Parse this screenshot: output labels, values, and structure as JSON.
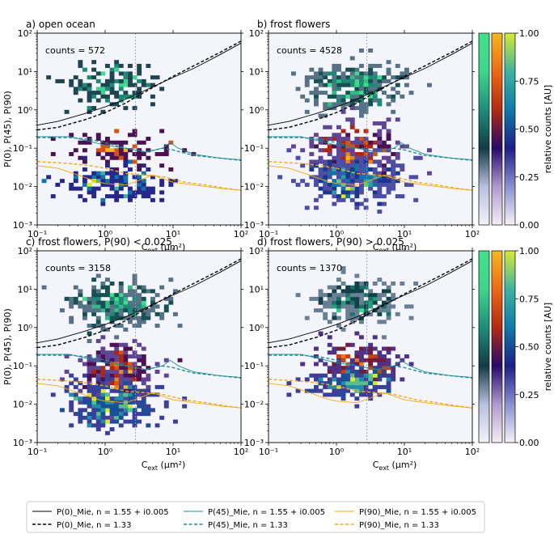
{
  "figure": {
    "colorbar_label": "relative counts [AU]",
    "colorbar_ticks": [
      "0.00",
      "0.25",
      "0.50",
      "0.75",
      "1.00"
    ],
    "colorbars": [
      {
        "name": "P(0)",
        "colors": [
          "#f4f3f8",
          "#b9bfe0",
          "#123b44",
          "#1f8d7a",
          "#3fd58c",
          "#43e08a"
        ]
      },
      {
        "name": "P(45)",
        "colors": [
          "#f6eef4",
          "#b09ad0",
          "#26096a",
          "#b22a12",
          "#eb6a15",
          "#f5b91f"
        ]
      },
      {
        "name": "P(90)",
        "colors": [
          "#f6f1f8",
          "#8c90cf",
          "#1d1f86",
          "#0f79a8",
          "#3fb3a0",
          "#d8ea32"
        ]
      }
    ]
  },
  "chart_data": {
    "type": "scatter",
    "x_axis": {
      "label": "C_ext (µm²)",
      "label_main": "C",
      "label_sub": "ext",
      "label_unit": " (µm²)",
      "scale": "log",
      "lim": [
        0.1,
        100
      ],
      "ticks": [
        0.1,
        1,
        10,
        100
      ],
      "tick_labels": [
        "10⁻¹",
        "10⁰",
        "10¹",
        "10²"
      ]
    },
    "y_axis": {
      "label": "P(0), P(45), P(90)",
      "scale": "log",
      "lim": [
        0.001,
        100
      ],
      "ticks": [
        0.001,
        0.01,
        0.1,
        1,
        10,
        100
      ],
      "tick_labels": [
        "10⁻³",
        "10⁻²",
        "10⁻¹",
        "10⁰",
        "10¹",
        "10²"
      ]
    },
    "vertical_reference_line_x": 2.8,
    "mie_curves": [
      {
        "name": "P(0) Mie n=1.55+i0.005",
        "style": "solid",
        "color": "#000000",
        "points": [
          [
            0.1,
            0.4
          ],
          [
            0.2,
            0.5
          ],
          [
            0.5,
            0.8
          ],
          [
            1,
            1.2
          ],
          [
            2,
            1.9
          ],
          [
            3,
            2.6
          ],
          [
            5,
            4
          ],
          [
            10,
            7
          ],
          [
            20,
            12
          ],
          [
            50,
            28
          ],
          [
            100,
            55
          ]
        ]
      },
      {
        "name": "P(0) Mie n=1.33",
        "style": "dashed",
        "color": "#000000",
        "points": [
          [
            0.1,
            0.3
          ],
          [
            0.2,
            0.35
          ],
          [
            0.5,
            0.55
          ],
          [
            1,
            0.85
          ],
          [
            2,
            1.5
          ],
          [
            3,
            2.3
          ],
          [
            5,
            3.8
          ],
          [
            10,
            7.5
          ],
          [
            20,
            14
          ],
          [
            50,
            32
          ],
          [
            100,
            62
          ]
        ]
      },
      {
        "name": "P(45) Mie n=1.55+i0.005",
        "style": "solid",
        "color": "#1c8d93",
        "points": [
          [
            0.1,
            0.2
          ],
          [
            0.3,
            0.2
          ],
          [
            0.6,
            0.15
          ],
          [
            1,
            0.12
          ],
          [
            2,
            0.1
          ],
          [
            4,
            0.08
          ],
          [
            7,
            0.1
          ],
          [
            9,
            0.14
          ],
          [
            12,
            0.1
          ],
          [
            20,
            0.07
          ],
          [
            50,
            0.055
          ],
          [
            100,
            0.05
          ]
        ]
      },
      {
        "name": "P(45) Mie n=1.33",
        "style": "dashed",
        "color": "#1c8d93",
        "points": [
          [
            0.1,
            0.19
          ],
          [
            0.3,
            0.19
          ],
          [
            0.6,
            0.17
          ],
          [
            1,
            0.14
          ],
          [
            2,
            0.1
          ],
          [
            4,
            0.08
          ],
          [
            7,
            0.1
          ],
          [
            10,
            0.09
          ],
          [
            20,
            0.065
          ],
          [
            50,
            0.055
          ],
          [
            100,
            0.048
          ]
        ]
      },
      {
        "name": "P(90) Mie n=1.55+i0.005",
        "style": "solid",
        "color": "#f5a80f",
        "points": [
          [
            0.1,
            0.035
          ],
          [
            0.2,
            0.03
          ],
          [
            0.4,
            0.02
          ],
          [
            0.7,
            0.014
          ],
          [
            1,
            0.012
          ],
          [
            2,
            0.011
          ],
          [
            3,
            0.014
          ],
          [
            5,
            0.02
          ],
          [
            10,
            0.013
          ],
          [
            20,
            0.011
          ],
          [
            50,
            0.009
          ],
          [
            100,
            0.008
          ]
        ]
      },
      {
        "name": "P(90) Mie n=1.33",
        "style": "dashed",
        "color": "#f5a80f",
        "points": [
          [
            0.1,
            0.045
          ],
          [
            0.3,
            0.04
          ],
          [
            0.6,
            0.035
          ],
          [
            1,
            0.03
          ],
          [
            2,
            0.022
          ],
          [
            4,
            0.02
          ],
          [
            7,
            0.018
          ],
          [
            15,
            0.013
          ],
          [
            30,
            0.011
          ],
          [
            60,
            0.009
          ],
          [
            100,
            0.008
          ]
        ]
      }
    ],
    "panels": [
      {
        "id": "a",
        "title": "a)    open ocean",
        "counts_text": "counts = 572",
        "clusters": [
          {
            "series": "P(0)",
            "x_center": 1.2,
            "y_center": 4.5,
            "x_sigma_dec": 0.33,
            "y_sigma_dec": 0.3,
            "n": 150,
            "seed": 11
          },
          {
            "series": "P(45)",
            "x_center": 1.6,
            "y_center": 0.1,
            "x_sigma_dec": 0.4,
            "y_sigma_dec": 0.25,
            "n": 95,
            "seed": 12
          },
          {
            "series": "P(90)",
            "x_center": 1.3,
            "y_center": 0.013,
            "x_sigma_dec": 0.4,
            "y_sigma_dec": 0.25,
            "n": 140,
            "seed": 13
          }
        ]
      },
      {
        "id": "b",
        "title": "b)    frost flowers",
        "counts_text": "counts = 4528",
        "clusters": [
          {
            "series": "P(0)",
            "x_center": 2.0,
            "y_center": 4.0,
            "x_sigma_dec": 0.35,
            "y_sigma_dec": 0.3,
            "n": 320,
            "seed": 21
          },
          {
            "series": "P(45)",
            "x_center": 2.0,
            "y_center": 0.08,
            "x_sigma_dec": 0.35,
            "y_sigma_dec": 0.35,
            "n": 300,
            "seed": 22
          },
          {
            "series": "P(90)",
            "x_center": 1.7,
            "y_center": 0.014,
            "x_sigma_dec": 0.35,
            "y_sigma_dec": 0.3,
            "n": 300,
            "seed": 23
          }
        ]
      },
      {
        "id": "c",
        "title": "c)    frost flowers, P(90) < 0.025",
        "counts_text": "counts = 3158",
        "clusters": [
          {
            "series": "P(0)",
            "x_center": 1.5,
            "y_center": 4.0,
            "x_sigma_dec": 0.35,
            "y_sigma_dec": 0.3,
            "n": 300,
            "seed": 31
          },
          {
            "series": "P(45)",
            "x_center": 1.6,
            "y_center": 0.06,
            "x_sigma_dec": 0.3,
            "y_sigma_dec": 0.35,
            "n": 300,
            "seed": 32
          },
          {
            "series": "P(90)",
            "x_center": 1.3,
            "y_center": 0.01,
            "x_sigma_dec": 0.35,
            "y_sigma_dec": 0.3,
            "n": 300,
            "seed": 33
          }
        ]
      },
      {
        "id": "d",
        "title": "d)    frost flowers, P(90) > 0.025",
        "counts_text": "counts = 1370",
        "clusters": [
          {
            "series": "P(0)",
            "x_center": 2.0,
            "y_center": 4.5,
            "x_sigma_dec": 0.3,
            "y_sigma_dec": 0.28,
            "n": 230,
            "seed": 41
          },
          {
            "series": "P(45)",
            "x_center": 2.2,
            "y_center": 0.1,
            "x_sigma_dec": 0.3,
            "y_sigma_dec": 0.3,
            "n": 200,
            "seed": 42
          },
          {
            "series": "P(90)",
            "x_center": 1.6,
            "y_center": 0.035,
            "x_sigma_dec": 0.3,
            "y_sigma_dec": 0.18,
            "n": 180,
            "seed": 43
          }
        ]
      }
    ],
    "legend": {
      "placement": "bottom-center",
      "entries": [
        {
          "label": "P(0)_Mie, n = 1.55 + i0.005",
          "color": "#000000",
          "style": "solid"
        },
        {
          "label": "P(0)_Mie, n = 1.33",
          "color": "#000000",
          "style": "dashed"
        },
        {
          "label": "P(45)_Mie, n = 1.55 + i0.005",
          "color": "#1c8d93",
          "style": "solid"
        },
        {
          "label": "P(45)_Mie, n = 1.33",
          "color": "#1c8d93",
          "style": "dashed"
        },
        {
          "label": "P(90)_Mie, n = 1.55 + i0.005",
          "color": "#f5a80f",
          "style": "solid"
        },
        {
          "label": "P(90)_Mie, n = 1.33",
          "color": "#f5a80f",
          "style": "dashed"
        }
      ]
    }
  }
}
